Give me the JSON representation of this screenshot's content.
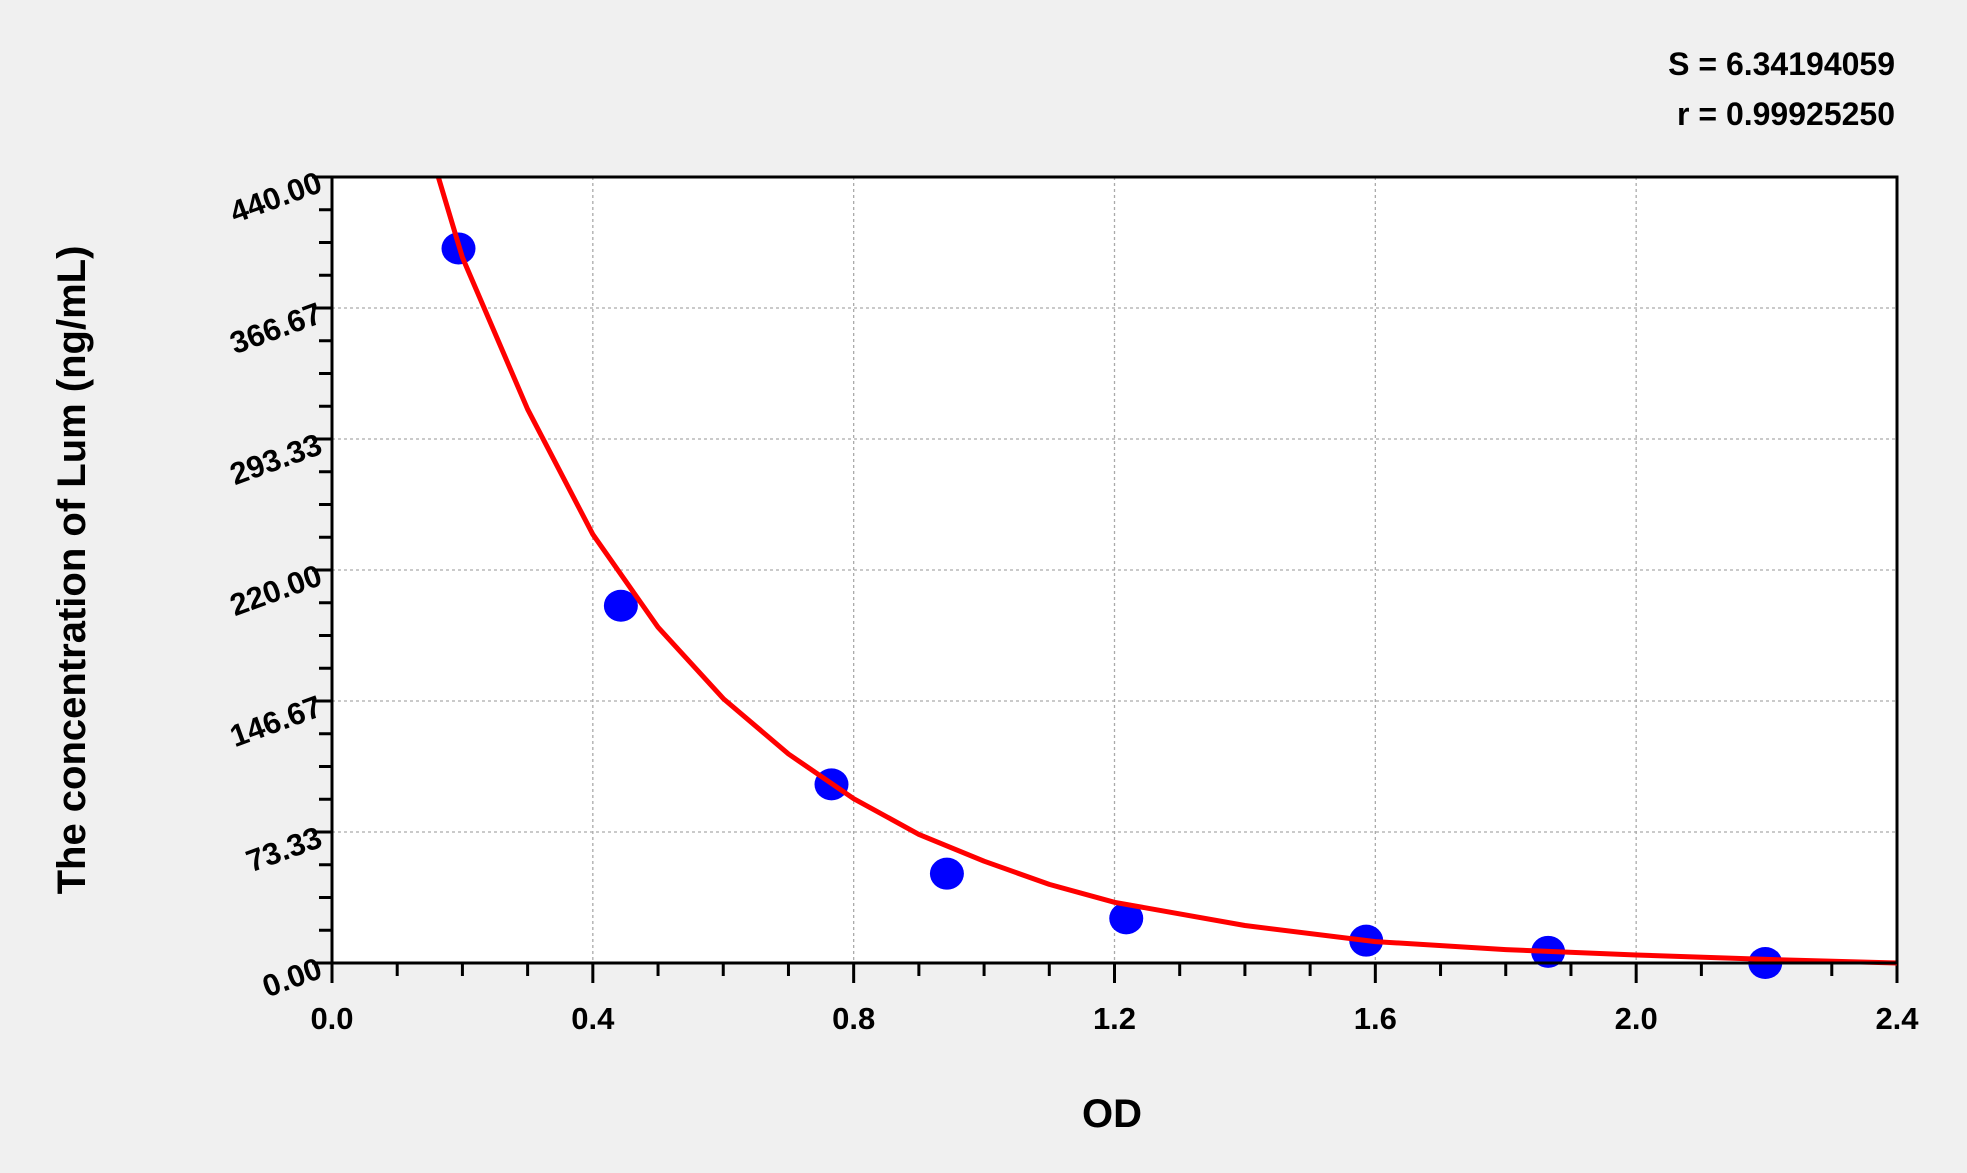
{
  "chart_data": {
    "type": "scatter",
    "title": "",
    "xlabel": "OD",
    "ylabel": "The concentration of Lum (ng/mL)",
    "xlim": [
      0.0,
      2.4
    ],
    "ylim": [
      0.0,
      440.0
    ],
    "x_ticks": [
      "0.0",
      "0.4",
      "0.8",
      "1.2",
      "1.6",
      "2.0",
      "2.4"
    ],
    "y_ticks": [
      "0.00",
      "73.33",
      "146.67",
      "220.00",
      "293.33",
      "366.67",
      "440.00"
    ],
    "grid": true,
    "legend": "none",
    "annotations": [
      "S = 6.34194059",
      "r = 0.99925250"
    ],
    "points": {
      "color": "#0000ff",
      "x": [
        0.194,
        0.443,
        0.766,
        0.943,
        1.218,
        1.586,
        1.865,
        2.198
      ],
      "y": [
        400,
        200,
        100,
        50,
        25,
        12.5,
        6.25,
        0
      ]
    },
    "fit_curve": {
      "color": "#ff0000",
      "x": [
        0.163,
        0.2,
        0.3,
        0.4,
        0.5,
        0.6,
        0.7,
        0.8,
        0.9,
        1.0,
        1.1,
        1.2,
        1.4,
        1.6,
        1.8,
        2.0,
        2.2,
        2.4
      ],
      "y": [
        440,
        395,
        310,
        240,
        188,
        148,
        117,
        92,
        72,
        57,
        44,
        34,
        21,
        12,
        7.5,
        4.5,
        2,
        0
      ]
    }
  }
}
